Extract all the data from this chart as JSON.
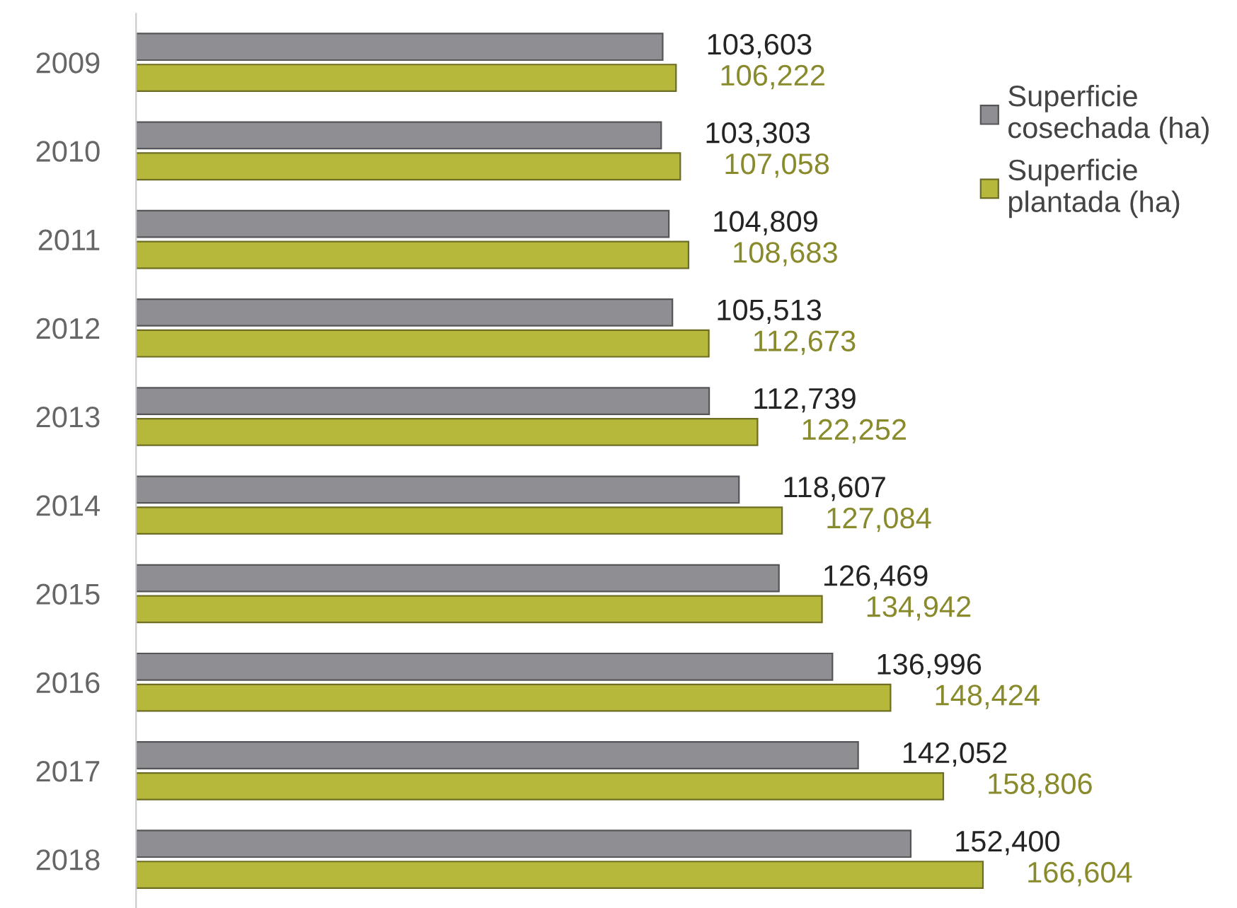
{
  "chart_data": {
    "type": "bar",
    "orientation": "horizontal",
    "categories": [
      "2009",
      "2010",
      "2011",
      "2012",
      "2013",
      "2014",
      "2015",
      "2016",
      "2017",
      "2018"
    ],
    "series": [
      {
        "name": "Superficie\ncosechada (ha)",
        "color": "#8f8f93",
        "values": [
          103603,
          103303,
          104809,
          105513,
          112739,
          118607,
          126469,
          136996,
          142052,
          152400
        ],
        "value_labels": [
          "103,603",
          "103,303",
          "104,809",
          "105,513",
          "112,739",
          "118,607",
          "126,469",
          "136,996",
          "142,052",
          "152,400"
        ]
      },
      {
        "name": "Superficie\nplantada (ha)",
        "color": "#b5b83a",
        "values": [
          106222,
          107058,
          108683,
          112673,
          122252,
          127084,
          134942,
          148424,
          158806,
          166604
        ],
        "value_labels": [
          "106,222",
          "107,058",
          "108,683",
          "112,673",
          "122,252",
          "127,084",
          "134,942",
          "148,424",
          "158,806",
          "166,604"
        ]
      }
    ],
    "legend": "top right",
    "grid": false
  }
}
